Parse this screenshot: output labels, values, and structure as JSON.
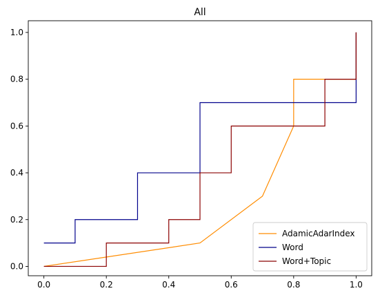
{
  "chart_data": {
    "type": "line",
    "title": "All",
    "xlabel": "",
    "ylabel": "",
    "xlim": [
      -0.05,
      1.05
    ],
    "ylim": [
      -0.04,
      1.05
    ],
    "x_ticks": [
      0.0,
      0.2,
      0.4,
      0.6,
      0.8,
      1.0
    ],
    "x_tick_labels": [
      "0.0",
      "0.2",
      "0.4",
      "0.6",
      "0.8",
      "1.0"
    ],
    "y_ticks": [
      0.0,
      0.2,
      0.4,
      0.6,
      0.8,
      1.0
    ],
    "y_tick_labels": [
      "0.0",
      "0.2",
      "0.4",
      "0.6",
      "0.8",
      "1.0"
    ],
    "grid": false,
    "legend_position": "lower-right",
    "series": [
      {
        "name": "AdamicAdarIndex",
        "color": "#ff8c00",
        "points": [
          [
            0.0,
            0.0
          ],
          [
            0.5,
            0.1
          ],
          [
            0.7,
            0.3
          ],
          [
            0.8,
            0.6
          ],
          [
            0.8,
            0.8
          ],
          [
            1.0,
            0.8
          ],
          [
            1.0,
            1.0
          ]
        ]
      },
      {
        "name": "Word",
        "color": "#00008b",
        "points": [
          [
            0.0,
            0.1
          ],
          [
            0.1,
            0.1
          ],
          [
            0.1,
            0.2
          ],
          [
            0.3,
            0.2
          ],
          [
            0.3,
            0.4
          ],
          [
            0.5,
            0.4
          ],
          [
            0.5,
            0.7
          ],
          [
            1.0,
            0.7
          ],
          [
            1.0,
            1.0
          ]
        ]
      },
      {
        "name": "Word+Topic",
        "color": "#8b0000",
        "points": [
          [
            0.0,
            0.0
          ],
          [
            0.2,
            0.0
          ],
          [
            0.2,
            0.1
          ],
          [
            0.4,
            0.1
          ],
          [
            0.4,
            0.2
          ],
          [
            0.5,
            0.2
          ],
          [
            0.5,
            0.4
          ],
          [
            0.6,
            0.4
          ],
          [
            0.6,
            0.6
          ],
          [
            0.9,
            0.6
          ],
          [
            0.9,
            0.8
          ],
          [
            1.0,
            0.8
          ],
          [
            1.0,
            1.0
          ]
        ]
      }
    ]
  }
}
